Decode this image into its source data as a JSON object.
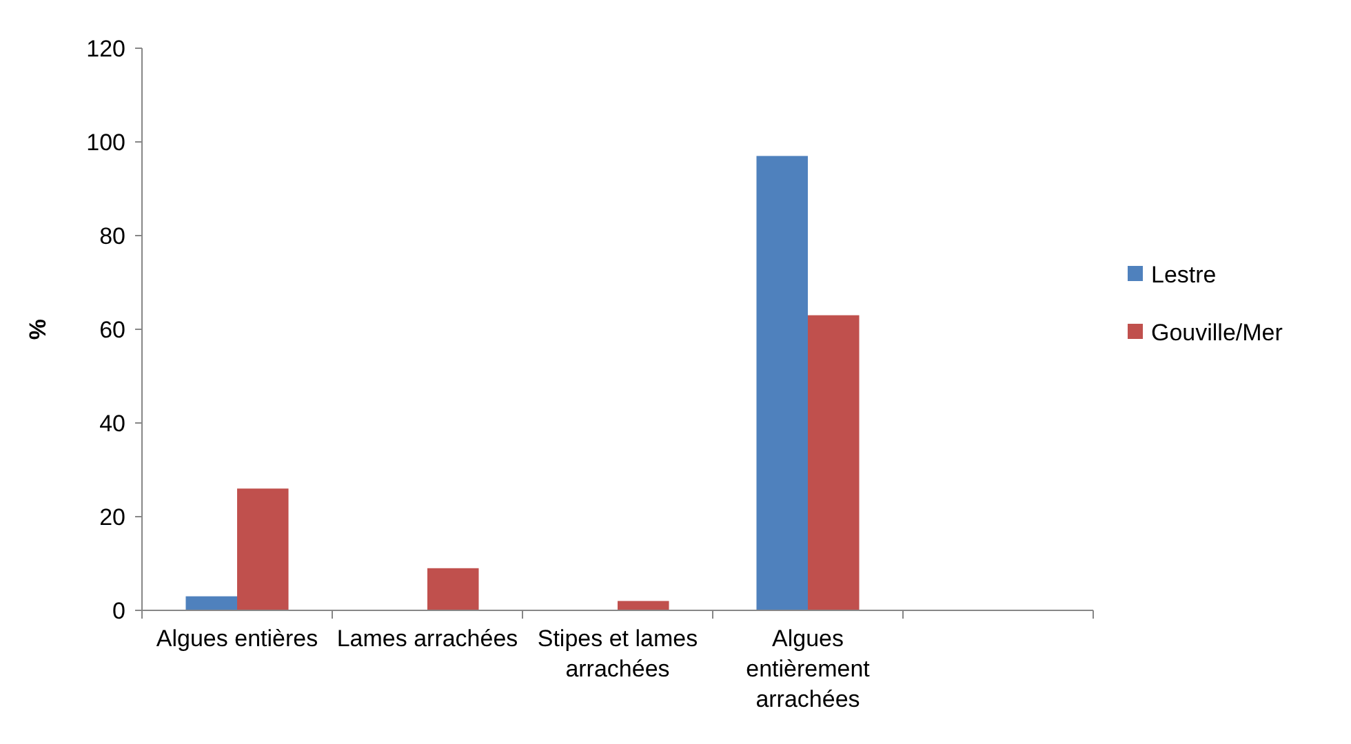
{
  "chart_data": {
    "type": "bar",
    "ylabel": "%",
    "categories": [
      "Algues entières",
      "Lames arrachées",
      "Stipes et lames arrachées",
      "Algues entièrement arrachées",
      null
    ],
    "series": [
      {
        "name": "Lestre",
        "color": "#4f81bd",
        "values": [
          3,
          0,
          0,
          97,
          null
        ]
      },
      {
        "name": "Gouville/Mer",
        "color": "#c0504d",
        "values": [
          26,
          9,
          2,
          63,
          null
        ]
      }
    ],
    "ylim": [
      0,
      120
    ],
    "yticks": [
      0,
      20,
      40,
      60,
      80,
      100,
      120
    ],
    "grid": false,
    "legend": "right"
  }
}
